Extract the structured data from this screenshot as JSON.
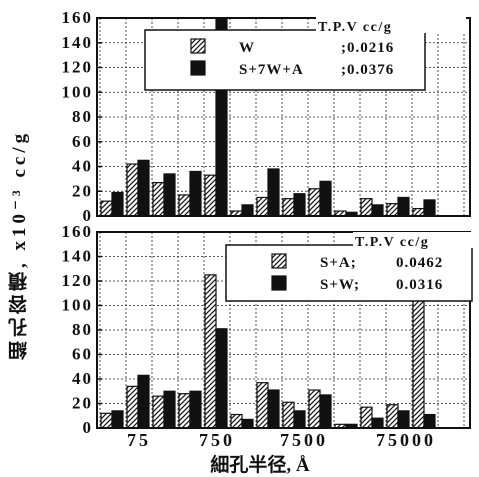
{
  "figure": {
    "ylabel": "細孔容積, x10⁻³ cc/g",
    "xlabel": "細孔半径, Å"
  },
  "chart_data": [
    {
      "type": "bar",
      "panel": "top",
      "ylim": [
        0,
        160
      ],
      "yticks": [
        "0",
        "20",
        "40",
        "60",
        "80",
        "100",
        "120",
        "140",
        "160"
      ],
      "xticks": [
        "75",
        "750",
        "7500",
        "75000"
      ],
      "grid": true,
      "legend_placement": "top-right",
      "legend_title": "T.P.V  cc/g",
      "series": [
        {
          "name": "W",
          "total_label": ";0.0216",
          "pattern": "hatched",
          "values": [
            12,
            42,
            27,
            17,
            33,
            4,
            15,
            14,
            22,
            4,
            14,
            10,
            6
          ]
        },
        {
          "name": "S+7W+A",
          "total_label": ";0.0376",
          "pattern": "solid",
          "values": [
            19,
            45,
            34,
            36,
            160,
            9,
            38,
            18,
            28,
            3,
            9,
            15,
            13
          ]
        }
      ]
    },
    {
      "type": "bar",
      "panel": "bottom",
      "ylim": [
        0,
        160
      ],
      "yticks": [
        "0",
        "20",
        "40",
        "60",
        "80",
        "100",
        "120",
        "140",
        "160"
      ],
      "xticks": [
        "75",
        "750",
        "7500",
        "75000"
      ],
      "grid": true,
      "legend_placement": "top-right",
      "legend_title": "T.P.V  cc/g",
      "series": [
        {
          "name": "S+A;",
          "total_label": "0.0462",
          "pattern": "hatched",
          "values": [
            12,
            34,
            26,
            28,
            125,
            11,
            37,
            21,
            31,
            3,
            17,
            19,
            160
          ]
        },
        {
          "name": "S+W;",
          "total_label": "0.0316",
          "pattern": "solid",
          "values": [
            14,
            43,
            30,
            30,
            81,
            7,
            31,
            14,
            27,
            3,
            8,
            14,
            11
          ]
        }
      ]
    }
  ]
}
